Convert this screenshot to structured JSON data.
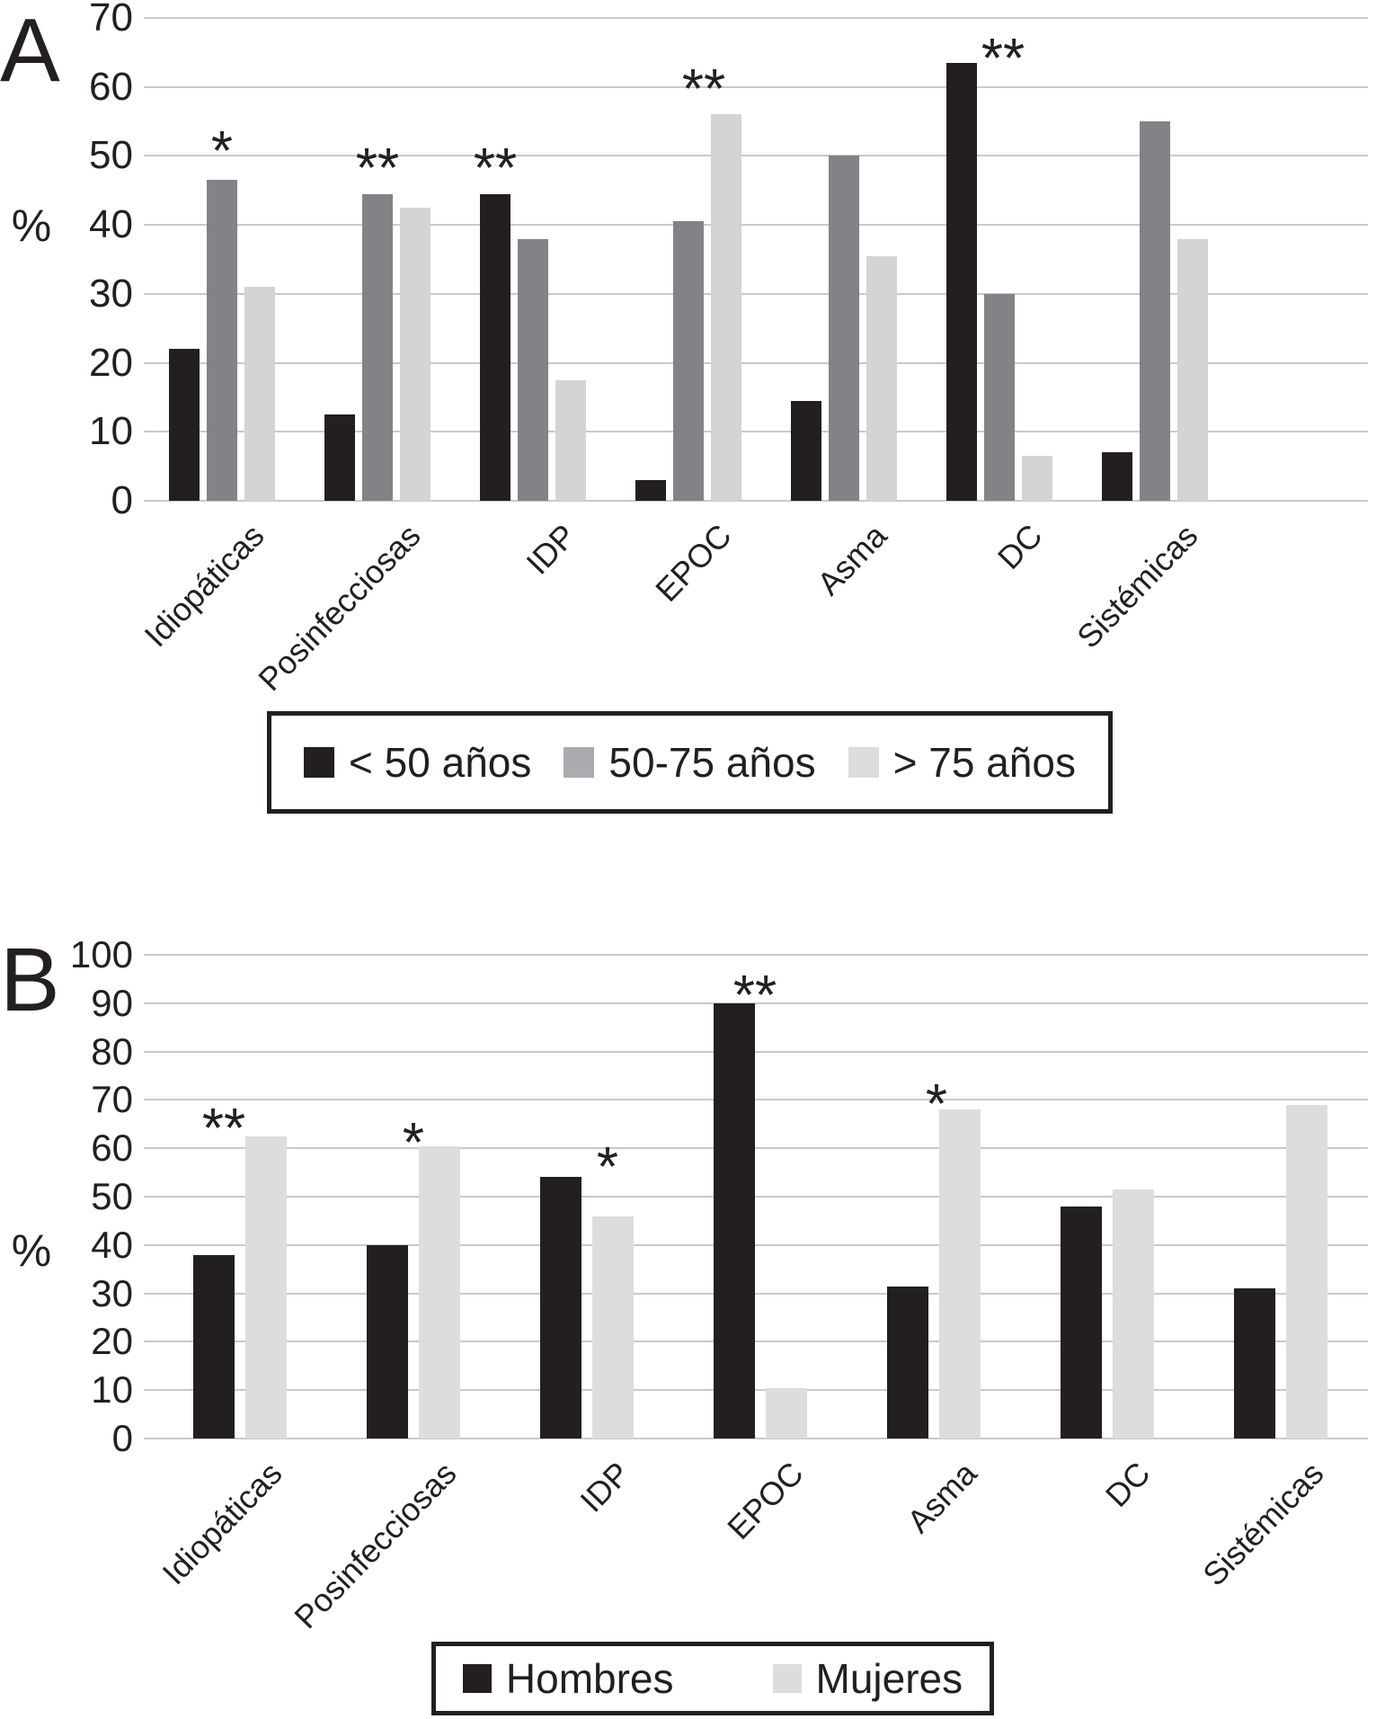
{
  "figure": {
    "background": "#ffffff",
    "text_color": "#231f20",
    "gridline_color": "#c8c9cb"
  },
  "chart_data": [
    {
      "panel_label": "A",
      "type": "bar",
      "ylabel": "%",
      "ylim": [
        0,
        70
      ],
      "ytick_step": 10,
      "grid": true,
      "legend_position": "bottom",
      "categories": [
        "Idiopáticas",
        "Posinfecciosas",
        "IDP",
        "EPOC",
        "Asma",
        "DC",
        "Sistémicas"
      ],
      "series": [
        {
          "name": "< 50 años",
          "color": "#231f20",
          "legend_swatch_color": "#231f20",
          "values": [
            22,
            12.5,
            44.5,
            3,
            14.5,
            63.5,
            7
          ]
        },
        {
          "name": "50-75 años",
          "color": "#818387",
          "legend_swatch_color": "#a9abae",
          "values": [
            46.5,
            44.5,
            38,
            40.5,
            50,
            30,
            55
          ]
        },
        {
          "name": "> 75 años",
          "color": "#d2d4d5",
          "legend_swatch_color": "#dcdddd",
          "values": [
            31,
            42.5,
            17.5,
            56,
            35.5,
            6.5,
            38
          ]
        }
      ],
      "annotations": [
        {
          "category_index": 0,
          "series_position": 1.0,
          "text": "*",
          "y": 52
        },
        {
          "category_index": 1,
          "series_position": 1.0,
          "text": "**",
          "y": 49.5
        },
        {
          "category_index": 2,
          "series_position": 0.0,
          "text": "**",
          "y": 49.5
        },
        {
          "category_index": 3,
          "series_position": 1.4,
          "text": "**",
          "y": 61
        },
        {
          "category_index": 5,
          "series_position": 1.1,
          "text": "**",
          "y": 65.5
        }
      ]
    },
    {
      "panel_label": "B",
      "type": "bar",
      "ylabel": "%",
      "ylim": [
        0,
        100
      ],
      "ytick_step": 10,
      "grid": true,
      "legend_position": "bottom",
      "categories": [
        "Idiopáticas",
        "Posinfecciosas",
        "IDP",
        "EPOC",
        "Asma",
        "DC",
        "Sistémicas"
      ],
      "series": [
        {
          "name": "Hombres",
          "color": "#231f20",
          "legend_swatch_color": "#231f20",
          "values": [
            38,
            40,
            54,
            90,
            31.5,
            48,
            31
          ]
        },
        {
          "name": "Mujeres",
          "color": "#dcdddd",
          "legend_swatch_color": "#dcdddd",
          "values": [
            62.5,
            60.5,
            46,
            10.5,
            68,
            51.5,
            69
          ]
        }
      ],
      "annotations": [
        {
          "category_index": 0,
          "series_position": 0.2,
          "text": "**",
          "y": 66
        },
        {
          "category_index": 1,
          "series_position": 0.5,
          "text": "*",
          "y": 63
        },
        {
          "category_index": 2,
          "series_position": 0.9,
          "text": "*",
          "y": 58
        },
        {
          "category_index": 3,
          "series_position": 0.4,
          "text": "**",
          "y": 93.5
        },
        {
          "category_index": 4,
          "series_position": 0.55,
          "text": "*",
          "y": 71
        }
      ]
    }
  ]
}
